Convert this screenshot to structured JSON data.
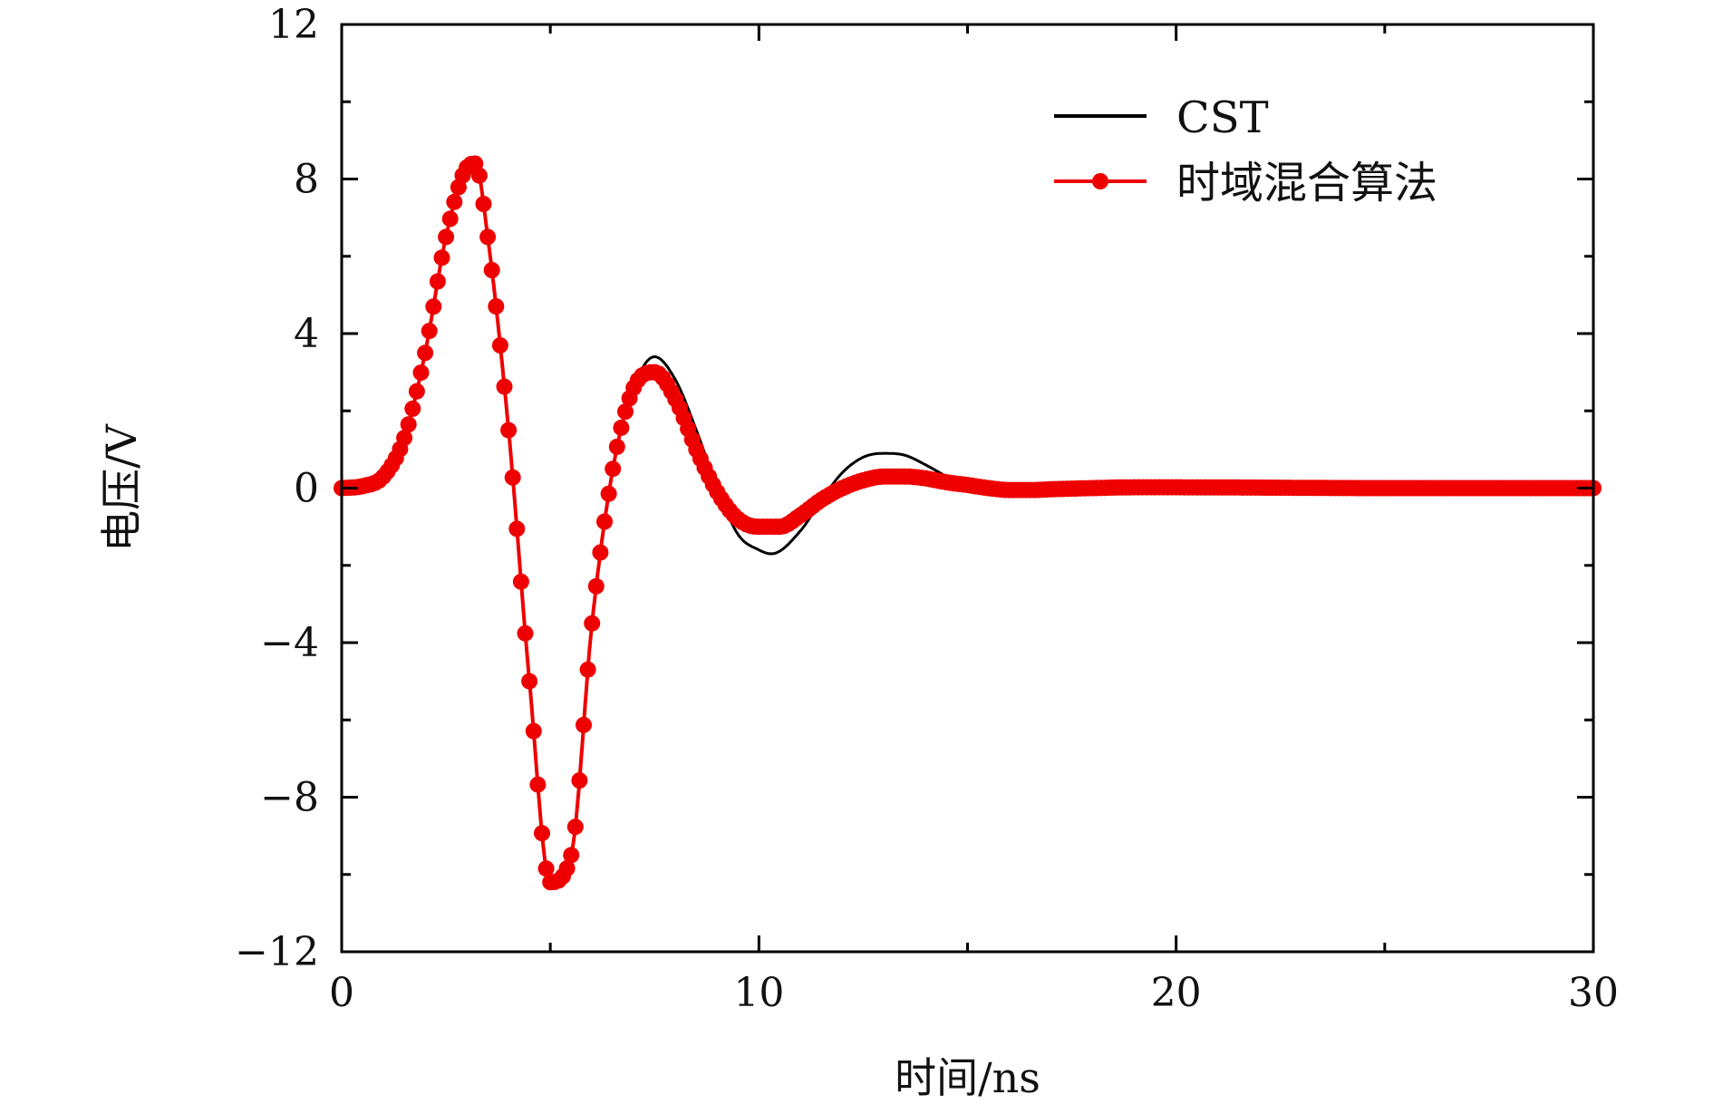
{
  "chart_data": {
    "type": "line",
    "title": "",
    "xlabel": "时间/ns",
    "ylabel": "电压/V",
    "xlim": [
      0,
      30
    ],
    "ylim": [
      -12,
      12
    ],
    "x_ticks": [
      0,
      10,
      20,
      30
    ],
    "x_tick_labels": [
      "0",
      "10",
      "20",
      "30"
    ],
    "x_minor_ticks": [
      5,
      15,
      25
    ],
    "y_ticks": [
      -12,
      -8,
      -4,
      0,
      4,
      8,
      12
    ],
    "y_tick_labels": [
      "−12",
      "−8",
      "−4",
      "0",
      "4",
      "8",
      "12"
    ],
    "y_minor_ticks": [
      -10,
      -6,
      -2,
      2,
      6,
      10
    ],
    "grid": false,
    "legend_position": "top-right",
    "series": [
      {
        "name": "CST",
        "color": "#000000",
        "marker": "none",
        "x": [
          0,
          0.5,
          1.0,
          1.5,
          2.0,
          2.5,
          3.0,
          3.2,
          3.5,
          4.0,
          4.5,
          5.0,
          5.5,
          6.0,
          6.5,
          7.0,
          7.5,
          8.0,
          8.5,
          9.0,
          9.5,
          10.0,
          10.3,
          11.0,
          11.5,
          12.0,
          12.5,
          13.0,
          13.5,
          14.0,
          14.5,
          15.0,
          15.5,
          16.0,
          16.5,
          17.0,
          18.0,
          19.0,
          20.0,
          25.0,
          30.0
        ],
        "y": [
          0,
          0.05,
          0.3,
          1.3,
          3.5,
          6.5,
          8.3,
          8.4,
          6.5,
          1.5,
          -5.0,
          -10.2,
          -9.5,
          -3.5,
          0.5,
          2.6,
          3.4,
          2.8,
          1.5,
          0.0,
          -1.2,
          -1.6,
          -1.7,
          -1.1,
          -0.3,
          0.4,
          0.8,
          0.9,
          0.85,
          0.6,
          0.3,
          0.05,
          -0.1,
          -0.18,
          -0.2,
          -0.15,
          -0.05,
          0.05,
          0.05,
          0.0,
          0.0
        ]
      },
      {
        "name": "时域混合算法",
        "color": "#ee0000",
        "marker": "circle",
        "x": [
          0,
          0.5,
          1.0,
          1.5,
          2.0,
          2.5,
          3.0,
          3.2,
          3.5,
          4.0,
          4.5,
          5.0,
          5.5,
          6.0,
          6.5,
          7.0,
          7.5,
          8.0,
          8.5,
          9.0,
          9.5,
          10.0,
          10.5,
          11.0,
          11.5,
          12.0,
          12.5,
          13.0,
          13.5,
          14.0,
          14.5,
          15.0,
          15.5,
          16.0,
          16.5,
          17.0,
          18.0,
          19.0,
          20.0,
          25.0,
          30.0
        ],
        "y": [
          0,
          0.05,
          0.3,
          1.3,
          3.5,
          6.5,
          8.3,
          8.4,
          6.5,
          1.5,
          -5.0,
          -10.2,
          -9.5,
          -3.5,
          0.5,
          2.6,
          3.0,
          2.3,
          1.0,
          -0.1,
          -0.8,
          -1.0,
          -1.0,
          -0.7,
          -0.3,
          0.0,
          0.2,
          0.3,
          0.3,
          0.25,
          0.15,
          0.08,
          0.0,
          -0.05,
          -0.05,
          -0.03,
          0.0,
          0.02,
          0.02,
          0.0,
          0.0
        ]
      }
    ]
  }
}
